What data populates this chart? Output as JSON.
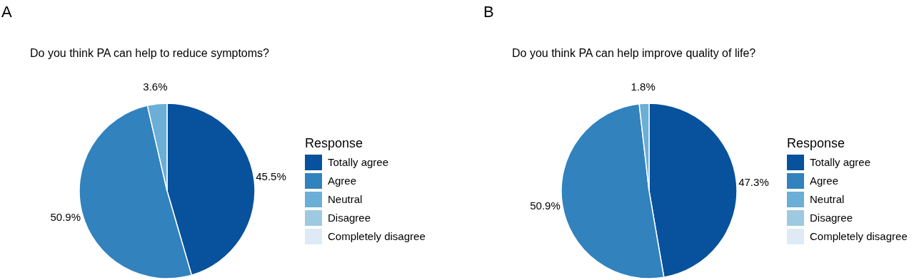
{
  "chart_data": [
    {
      "type": "pie",
      "title": "A",
      "subtitle": "Do you think PA can help to reduce symptoms?",
      "legend_title": "Response",
      "legend": "right",
      "categories": [
        "Totally agree",
        "Agree",
        "Neutral",
        "Disagree",
        "Completely disagree"
      ],
      "values": [
        45.5,
        50.9,
        3.6,
        0,
        0
      ],
      "value_labels": [
        "45.5%",
        "50.9%",
        "3.6%",
        null,
        null
      ],
      "colors": [
        "#08519c",
        "#3182bd",
        "#6baed6",
        "#9ecae1",
        "#deebf7"
      ]
    },
    {
      "type": "pie",
      "title": "B",
      "subtitle": "Do you think PA can help improve quality of life?",
      "legend_title": "Response",
      "legend": "right",
      "categories": [
        "Totally agree",
        "Agree",
        "Neutral",
        "Disagree",
        "Completely disagree"
      ],
      "values": [
        47.3,
        50.9,
        1.8,
        0,
        0
      ],
      "value_labels": [
        "47.3%",
        "50.9%",
        "1.8%",
        null,
        null
      ],
      "colors": [
        "#08519c",
        "#3182bd",
        "#6baed6",
        "#9ecae1",
        "#deebf7"
      ]
    }
  ]
}
